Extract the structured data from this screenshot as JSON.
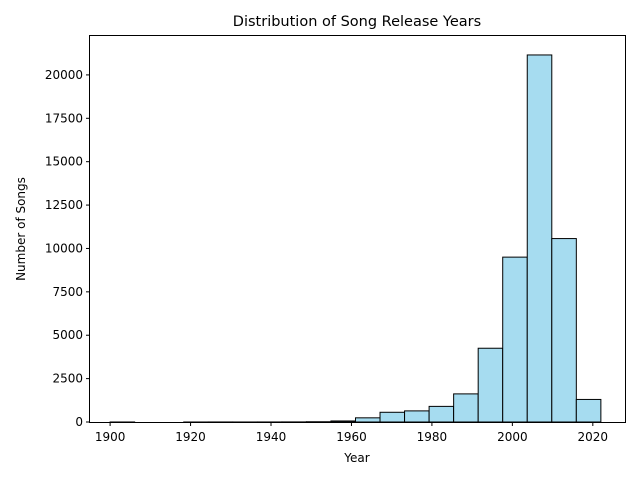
{
  "chart_data": {
    "type": "bar",
    "title": "Distribution of Song Release Years",
    "xlabel": "Year",
    "ylabel": "Number of Songs",
    "bin_width": 6.1,
    "bins": [
      {
        "start": 1900.0,
        "count": 2
      },
      {
        "start": 1906.1,
        "count": 0
      },
      {
        "start": 1912.2,
        "count": 0
      },
      {
        "start": 1918.3,
        "count": 1
      },
      {
        "start": 1924.4,
        "count": 3
      },
      {
        "start": 1930.5,
        "count": 2
      },
      {
        "start": 1936.6,
        "count": 3
      },
      {
        "start": 1942.7,
        "count": 6
      },
      {
        "start": 1948.8,
        "count": 15
      },
      {
        "start": 1954.9,
        "count": 60
      },
      {
        "start": 1961.0,
        "count": 240
      },
      {
        "start": 1967.1,
        "count": 560
      },
      {
        "start": 1973.2,
        "count": 640
      },
      {
        "start": 1979.3,
        "count": 900
      },
      {
        "start": 1985.4,
        "count": 1620
      },
      {
        "start": 1991.5,
        "count": 4250
      },
      {
        "start": 1997.6,
        "count": 9500
      },
      {
        "start": 2003.7,
        "count": 21150
      },
      {
        "start": 2009.8,
        "count": 10570
      },
      {
        "start": 2015.9,
        "count": 1300
      }
    ],
    "xlim": [
      1895,
      2028
    ],
    "ylim": [
      0,
      22300
    ],
    "x_ticks": [
      1900,
      1920,
      1940,
      1960,
      1980,
      2000,
      2020
    ],
    "y_ticks": [
      0,
      2500,
      5000,
      7500,
      10000,
      12500,
      15000,
      17500,
      20000
    ],
    "bar_color": "#a6dcf0",
    "edge_color": "#000000",
    "grid": false,
    "legend": "none"
  }
}
